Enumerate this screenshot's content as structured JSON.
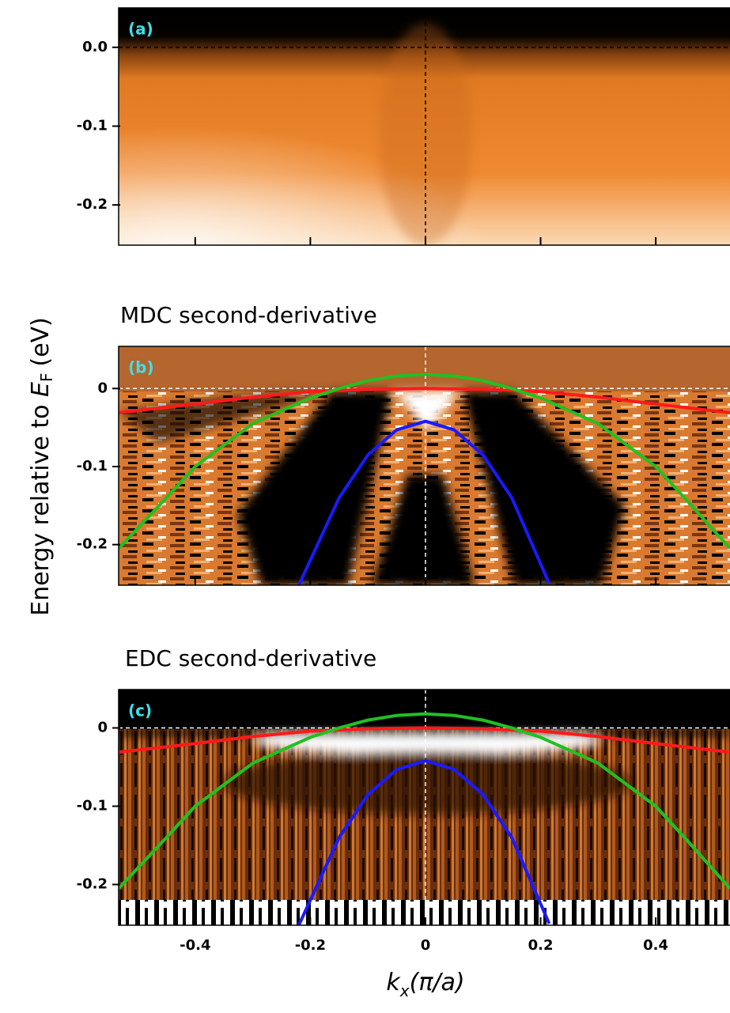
{
  "ylabel": {
    "text": "Energy relative to ",
    "symbol": "E",
    "subscript": "F",
    "unit": "(eV)"
  },
  "xlabel": {
    "symbol": "k",
    "subscript": "x",
    "unit": "(π/a)"
  },
  "chart_data": [
    {
      "type": "heatmap",
      "panel_label": "(a)",
      "xlim": [
        -0.533,
        0.529
      ],
      "ylim": [
        -0.251,
        0.05
      ],
      "xticks": [
        -0.4,
        -0.2,
        0,
        0.2,
        0.4
      ],
      "show_xtick_labels": false,
      "yticks": [
        {
          "value": 0,
          "label": "0.0"
        },
        -0.1,
        -0.2
      ],
      "reference_lines": {
        "x": 0,
        "y": 0,
        "color": "#000000"
      }
    },
    {
      "type": "heatmap",
      "title": "MDC second-derivative",
      "panel_label": "(b)",
      "xlim": [
        -0.533,
        0.529
      ],
      "ylim": [
        -0.252,
        0.054
      ],
      "xticks": [
        -0.4,
        -0.2,
        0,
        0.2,
        0.4
      ],
      "show_xtick_labels": false,
      "yticks": [
        0,
        -0.1,
        -0.2
      ],
      "reference_lines": {
        "x": 0,
        "y": 0,
        "color": "#ffffff"
      },
      "series": [
        {
          "color": "#ff1a1a",
          "x": [
            -0.533,
            -0.4,
            -0.3,
            -0.2,
            -0.1,
            0,
            0.1,
            0.2,
            0.3,
            0.4,
            0.529
          ],
          "values": [
            -0.031,
            -0.02,
            -0.011,
            -0.004,
            -0.001,
            0,
            -0.001,
            -0.004,
            -0.011,
            -0.02,
            -0.031
          ]
        },
        {
          "color": "#22c020",
          "x": [
            -0.533,
            -0.45,
            -0.4,
            -0.3,
            -0.2,
            -0.15,
            -0.1,
            -0.05,
            0,
            0.05,
            0.1,
            0.15,
            0.2,
            0.3,
            0.4,
            0.45,
            0.529
          ],
          "values": [
            -0.205,
            -0.14,
            -0.1,
            -0.045,
            -0.012,
            0,
            0.01,
            0.016,
            0.018,
            0.016,
            0.01,
            0,
            -0.012,
            -0.045,
            -0.1,
            -0.14,
            -0.205
          ]
        },
        {
          "color": "#1a1aff",
          "x": [
            -0.22,
            -0.15,
            -0.1,
            -0.05,
            0,
            0.05,
            0.1,
            0.15,
            0.215
          ],
          "values": [
            -0.252,
            -0.14,
            -0.085,
            -0.053,
            -0.042,
            -0.053,
            -0.085,
            -0.14,
            -0.25
          ]
        }
      ]
    },
    {
      "type": "heatmap",
      "title": "EDC second-derivative",
      "panel_label": "(c)",
      "xlim": [
        -0.533,
        0.529
      ],
      "ylim": [
        -0.252,
        0.049
      ],
      "xticks": [
        -0.4,
        -0.2,
        0,
        0.2,
        0.4
      ],
      "show_xtick_labels": true,
      "yticks": [
        0,
        -0.1,
        -0.2
      ],
      "reference_lines": {
        "x": 0,
        "y": 0,
        "color": "#ffffff"
      },
      "series": [
        {
          "color": "#ff1a1a",
          "x": [
            -0.533,
            -0.4,
            -0.3,
            -0.2,
            -0.1,
            0,
            0.1,
            0.2,
            0.3,
            0.4,
            0.529
          ],
          "values": [
            -0.031,
            -0.02,
            -0.011,
            -0.004,
            -0.001,
            0,
            -0.001,
            -0.004,
            -0.011,
            -0.02,
            -0.031
          ]
        },
        {
          "color": "#22c020",
          "x": [
            -0.533,
            -0.45,
            -0.4,
            -0.3,
            -0.2,
            -0.15,
            -0.1,
            -0.05,
            0,
            0.05,
            0.1,
            0.15,
            0.2,
            0.3,
            0.4,
            0.45,
            0.529
          ],
          "values": [
            -0.205,
            -0.14,
            -0.1,
            -0.045,
            -0.012,
            0,
            0.01,
            0.016,
            0.018,
            0.016,
            0.01,
            0,
            -0.012,
            -0.045,
            -0.1,
            -0.14,
            -0.205
          ]
        },
        {
          "color": "#1a1aff",
          "x": [
            -0.22,
            -0.15,
            -0.1,
            -0.05,
            0,
            0.05,
            0.1,
            0.15,
            0.215
          ],
          "values": [
            -0.252,
            -0.14,
            -0.085,
            -0.053,
            -0.042,
            -0.053,
            -0.085,
            -0.14,
            -0.25
          ]
        }
      ]
    }
  ]
}
